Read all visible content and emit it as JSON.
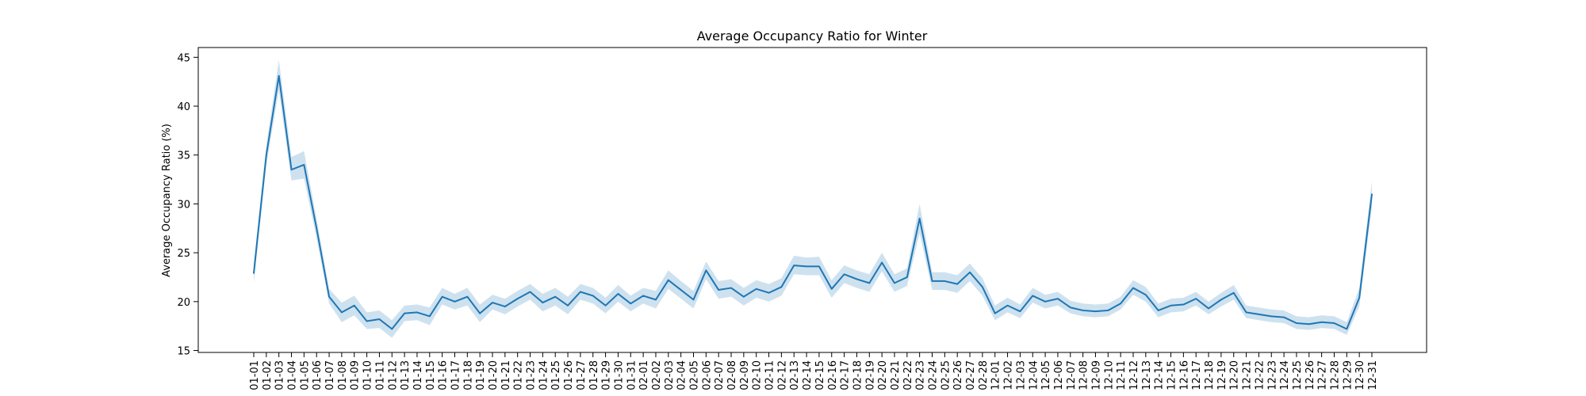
{
  "chart_data": {
    "type": "line",
    "title": "Average Occupancy Ratio for Winter",
    "xlabel": "",
    "ylabel": "Average Occupancy Ratio (%)",
    "ylim": [
      14.8,
      46.0
    ],
    "yticks": [
      15,
      20,
      25,
      30,
      35,
      40,
      45
    ],
    "grid": false,
    "legend": "none",
    "colors": {
      "line": "#1f77b4",
      "band": "#1f77b4",
      "axis": "#000000"
    },
    "categories": [
      "01-01",
      "01-02",
      "01-03",
      "01-04",
      "01-05",
      "01-06",
      "01-07",
      "01-08",
      "01-09",
      "01-10",
      "01-11",
      "01-12",
      "01-13",
      "01-14",
      "01-15",
      "01-16",
      "01-17",
      "01-18",
      "01-19",
      "01-20",
      "01-21",
      "01-22",
      "01-23",
      "01-24",
      "01-25",
      "01-26",
      "01-27",
      "01-28",
      "01-29",
      "01-30",
      "01-31",
      "02-01",
      "02-02",
      "02-03",
      "02-04",
      "02-05",
      "02-06",
      "02-07",
      "02-08",
      "02-09",
      "02-10",
      "02-11",
      "02-12",
      "02-13",
      "02-14",
      "02-15",
      "02-16",
      "02-17",
      "02-18",
      "02-19",
      "02-20",
      "02-21",
      "02-22",
      "02-23",
      "02-24",
      "02-25",
      "02-26",
      "02-27",
      "02-28",
      "12-01",
      "12-02",
      "12-03",
      "12-04",
      "12-05",
      "12-06",
      "12-07",
      "12-08",
      "12-09",
      "12-10",
      "12-11",
      "12-12",
      "12-13",
      "12-14",
      "12-15",
      "12-16",
      "12-17",
      "12-18",
      "12-19",
      "12-20",
      "12-21",
      "12-22",
      "12-23",
      "12-24",
      "12-25",
      "12-26",
      "12-27",
      "12-28",
      "12-29",
      "12-30",
      "12-31"
    ],
    "series": [
      {
        "values": [
          22.9,
          35.0,
          43.1,
          33.5,
          34.0,
          27.5,
          20.5,
          18.9,
          19.6,
          18.0,
          18.2,
          17.2,
          18.8,
          18.9,
          18.5,
          20.5,
          20.0,
          20.5,
          18.8,
          19.9,
          19.5,
          20.3,
          21.0,
          19.9,
          20.5,
          19.6,
          21.0,
          20.6,
          19.6,
          20.8,
          19.8,
          20.6,
          20.2,
          22.2,
          21.2,
          20.2,
          23.2,
          21.2,
          21.4,
          20.5,
          21.3,
          20.9,
          21.5,
          23.7,
          23.6,
          23.6,
          21.3,
          22.8,
          22.3,
          21.9,
          24.0,
          21.9,
          22.5,
          28.5,
          22.1,
          22.1,
          21.8,
          23.0,
          21.5,
          18.8,
          19.6,
          19.0,
          20.6,
          20.0,
          20.3,
          19.4,
          19.1,
          19.0,
          19.1,
          19.8,
          21.4,
          20.7,
          19.1,
          19.6,
          19.7,
          20.3,
          19.3,
          20.2,
          20.9,
          18.9,
          18.7,
          18.5,
          18.4,
          17.8,
          17.7,
          17.9,
          17.8,
          17.2,
          20.4,
          31.0
        ],
        "lower": [
          21.9,
          34.0,
          41.6,
          32.4,
          32.6,
          26.5,
          19.8,
          17.9,
          18.6,
          17.2,
          17.3,
          16.3,
          18.0,
          18.1,
          17.6,
          19.7,
          19.2,
          19.6,
          17.9,
          19.2,
          18.7,
          19.5,
          20.2,
          19.0,
          19.6,
          18.7,
          20.2,
          19.8,
          18.8,
          20.0,
          19.0,
          19.8,
          19.3,
          21.3,
          20.3,
          19.3,
          22.3,
          20.3,
          20.5,
          19.6,
          20.4,
          20.0,
          20.6,
          22.8,
          22.7,
          22.7,
          20.4,
          21.9,
          21.4,
          21.0,
          23.1,
          21.0,
          21.6,
          27.0,
          21.2,
          21.2,
          20.9,
          22.1,
          20.6,
          18.1,
          18.9,
          18.3,
          19.9,
          19.3,
          19.6,
          18.8,
          18.5,
          18.4,
          18.5,
          19.2,
          20.7,
          20.0,
          18.4,
          18.9,
          19.0,
          19.6,
          18.7,
          19.5,
          20.2,
          18.3,
          18.1,
          17.9,
          17.8,
          17.2,
          17.1,
          17.3,
          17.2,
          16.6,
          19.5,
          29.7
        ],
        "upper": [
          23.9,
          36.0,
          44.7,
          34.8,
          35.4,
          28.5,
          21.3,
          19.9,
          20.6,
          18.9,
          19.1,
          18.1,
          19.6,
          19.7,
          19.4,
          21.4,
          20.8,
          21.4,
          19.7,
          20.7,
          20.3,
          21.1,
          21.8,
          20.8,
          21.4,
          20.5,
          21.8,
          21.4,
          20.4,
          21.7,
          20.6,
          21.4,
          21.1,
          23.2,
          22.1,
          21.1,
          24.1,
          22.1,
          22.3,
          21.4,
          22.2,
          21.8,
          22.4,
          24.7,
          24.5,
          24.6,
          22.2,
          23.7,
          23.2,
          22.8,
          25.0,
          22.8,
          23.4,
          30.0,
          23.0,
          23.0,
          22.7,
          23.9,
          22.4,
          19.6,
          20.4,
          19.7,
          21.4,
          20.7,
          21.0,
          20.1,
          19.8,
          19.7,
          19.8,
          20.5,
          22.2,
          21.5,
          19.8,
          20.3,
          20.4,
          21.0,
          20.0,
          20.9,
          21.7,
          19.6,
          19.4,
          19.2,
          19.1,
          18.5,
          18.4,
          18.6,
          18.5,
          17.9,
          21.4,
          32.3
        ]
      }
    ]
  }
}
